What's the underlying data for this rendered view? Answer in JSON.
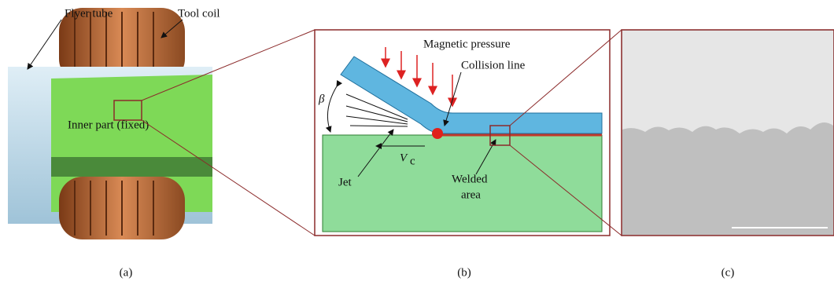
{
  "panel_a": {
    "labels": {
      "flyer_tube": "Flyer tube",
      "tool_coil": "Tool coil",
      "inner_part": "Inner part (fixed)"
    },
    "caption": "(a)"
  },
  "panel_b": {
    "labels": {
      "magnetic_pressure": "Magnetic pressure",
      "collision_line": "Collision line",
      "angle": "β",
      "jet": "Jet",
      "velocity": "V",
      "velocity_subscript": "c",
      "welded_area_1": "Welded",
      "welded_area_2": "area"
    },
    "caption": "(b)"
  },
  "panel_c": {
    "caption": "(c)"
  }
}
